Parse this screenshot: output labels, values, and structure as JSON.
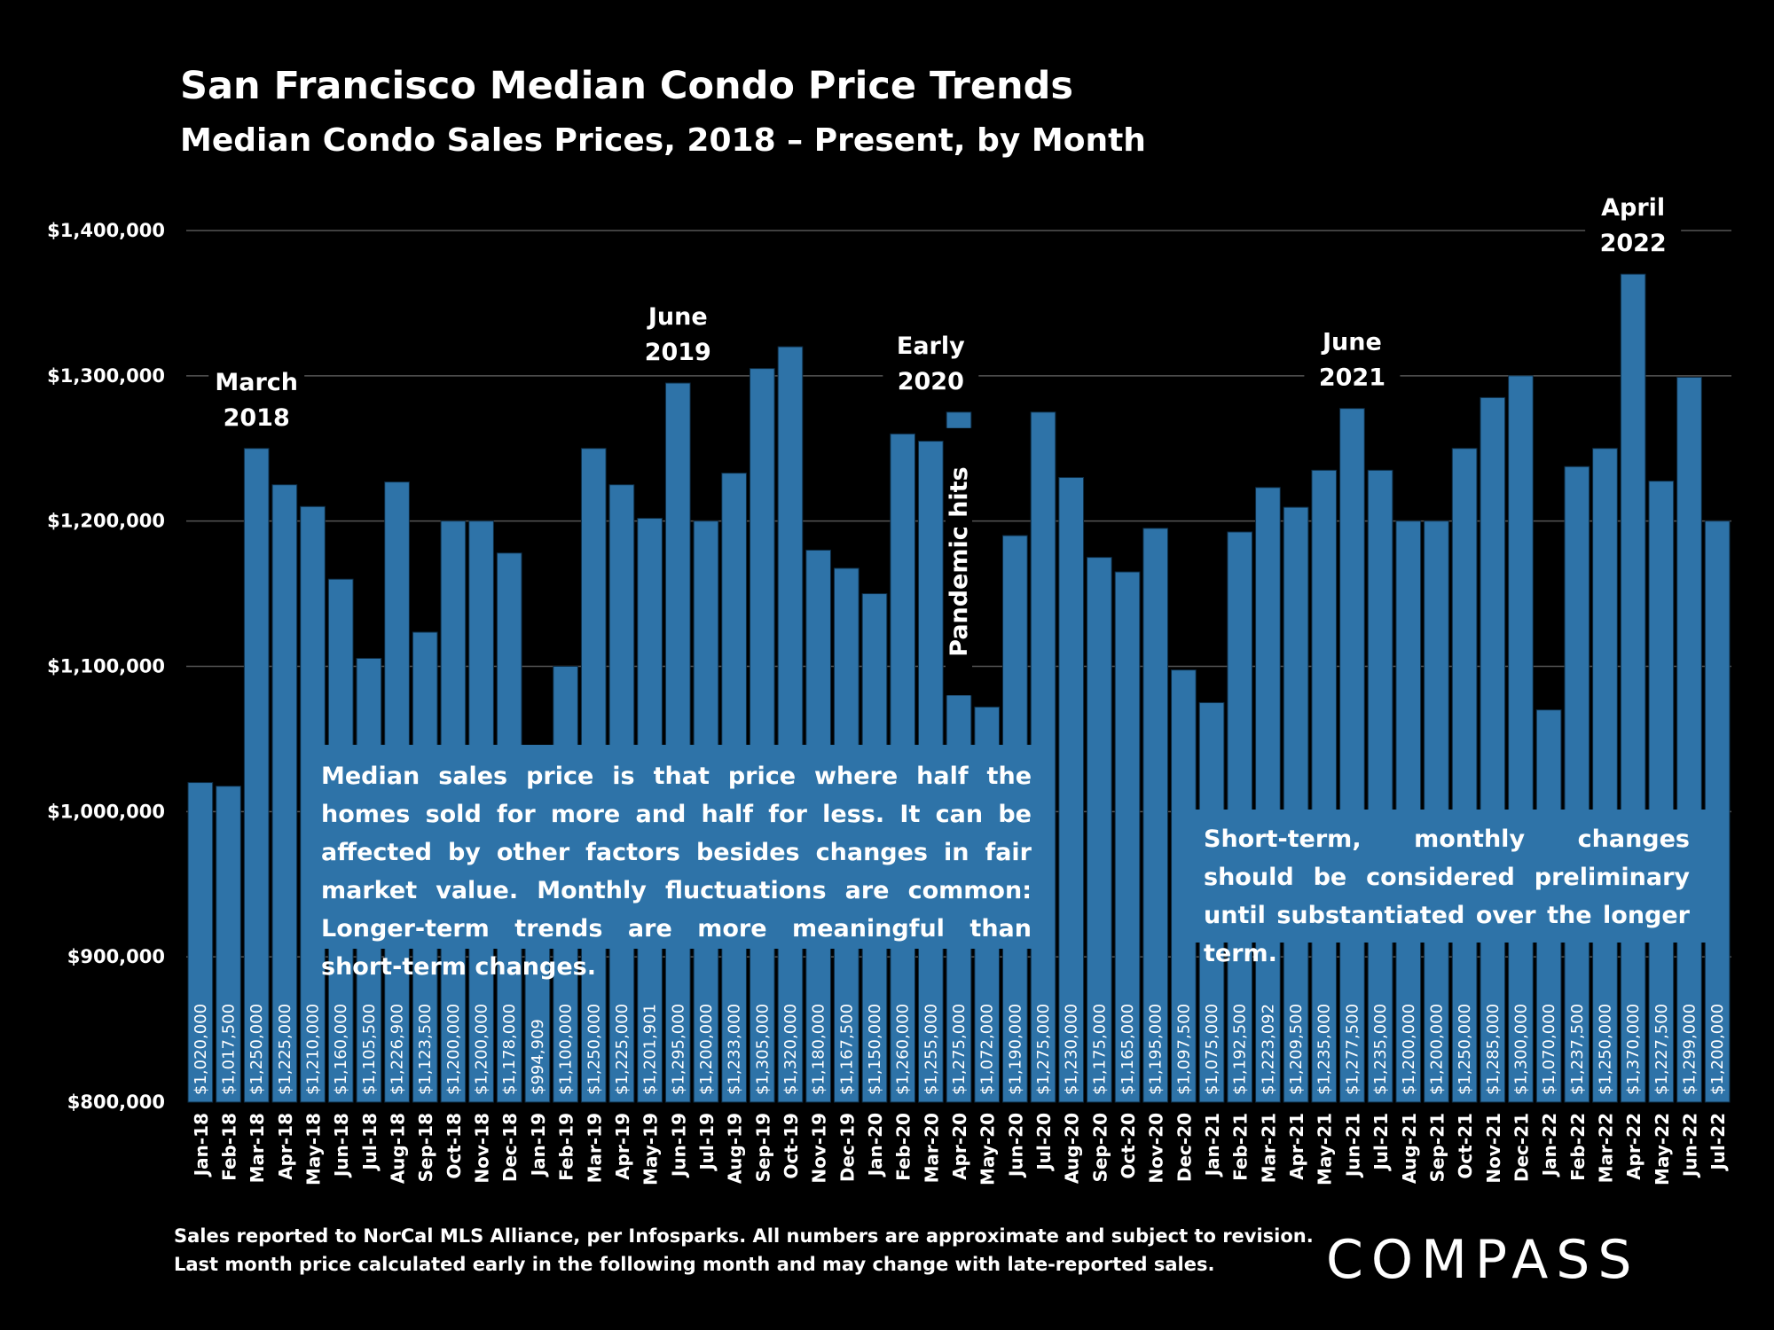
{
  "header": {
    "title": "San Francisco Median Condo Price Trends",
    "subtitle": "Median Condo Sales Prices, 2018 – Present, by Month"
  },
  "chart_data": {
    "type": "bar",
    "title": "San Francisco Median Condo Price Trends",
    "subtitle": "Median Condo Sales Prices, 2018 – Present, by Month",
    "xlabel": "",
    "ylabel": "",
    "ylim": [
      800000,
      1400000
    ],
    "yticks": [
      800000,
      900000,
      1000000,
      1100000,
      1200000,
      1300000,
      1400000
    ],
    "ytick_labels": [
      "$800,000",
      "$900,000",
      "$1,000,000",
      "$1,100,000",
      "$1,200,000",
      "$1,300,000",
      "$1,400,000"
    ],
    "grid": true,
    "bar_color": "#2e73a8",
    "categories": [
      "Jan-18",
      "Feb-18",
      "Mar-18",
      "Apr-18",
      "May-18",
      "Jun-18",
      "Jul-18",
      "Aug-18",
      "Sep-18",
      "Oct-18",
      "Nov-18",
      "Dec-18",
      "Jan-19",
      "Feb-19",
      "Mar-19",
      "Apr-19",
      "May-19",
      "Jun-19",
      "Jul-19",
      "Aug-19",
      "Sep-19",
      "Oct-19",
      "Nov-19",
      "Dec-19",
      "Jan-20",
      "Feb-20",
      "Mar-20",
      "Apr-20",
      "May-20",
      "Jun-20",
      "Jul-20",
      "Aug-20",
      "Sep-20",
      "Oct-20",
      "Nov-20",
      "Dec-20",
      "Jan-21",
      "Feb-21",
      "Mar-21",
      "Apr-21",
      "May-21",
      "Jun-21",
      "Jul-21",
      "Aug-21",
      "Sep-21",
      "Oct-21",
      "Nov-21",
      "Dec-21",
      "Jan-22",
      "Feb-22",
      "Mar-22",
      "Apr-22",
      "May-22",
      "Jun-22",
      "Jul-22"
    ],
    "values": [
      1020000,
      1017500,
      1250000,
      1225000,
      1210000,
      1160000,
      1105500,
      1226900,
      1123500,
      1200000,
      1200000,
      1178000,
      994909,
      1100000,
      1250000,
      1225000,
      1201901,
      1295000,
      1200000,
      1233000,
      1305000,
      1320000,
      1180000,
      1167500,
      1150000,
      1260000,
      1255000,
      1275000,
      1072000,
      1190000,
      1275000,
      1230000,
      1175000,
      1165000,
      1195000,
      1097500,
      1075000,
      1192500,
      1223092,
      1209500,
      1235000,
      1277500,
      1235000,
      1200000,
      1200000,
      1250000,
      1285000,
      1300000,
      1070000,
      1237500,
      1250000,
      1370000,
      1227500,
      1299000,
      1200000
    ],
    "data_labels": [
      "$1,020,000",
      "$1,017,500",
      "$1,250,000",
      "$1,225,000",
      "$1,210,000",
      "$1,160,000",
      "$1,105,500",
      "$1,226,900",
      "$1,123,500",
      "$1,200,000",
      "$1,200,000",
      "$1,178,000",
      "$994,909",
      "$1,100,000",
      "$1,250,000",
      "$1,225,000",
      "$1,201,901",
      "$1,295,000",
      "$1,200,000",
      "$1,233,000",
      "$1,305,000",
      "$1,320,000",
      "$1,180,000",
      "$1,167,500",
      "$1,150,000",
      "$1,260,000",
      "$1,255,000",
      "$1,275,000",
      "$1,072,000",
      "$1,190,000",
      "$1,275,000",
      "$1,230,000",
      "$1,175,000",
      "$1,165,000",
      "$1,195,000",
      "$1,097,500",
      "$1,075,000",
      "$1,192,500",
      "$1,223,092",
      "$1,209,500",
      "$1,235,000",
      "$1,277,500",
      "$1,235,000",
      "$1,200,000",
      "$1,200,000",
      "$1,250,000",
      "$1,285,000",
      "$1,300,000",
      "$1,070,000",
      "$1,237,500",
      "$1,250,000",
      "$1,370,000",
      "$1,227,500",
      "$1,299,000",
      "$1,200,000"
    ],
    "annotations": [
      {
        "category": "Mar-18",
        "lines": [
          "March",
          "2018"
        ]
      },
      {
        "category": "Jun-19",
        "lines": [
          "June",
          "2019"
        ]
      },
      {
        "category": "Mar-20",
        "lines": [
          "Early",
          "2020"
        ]
      },
      {
        "category": "Jun-21",
        "lines": [
          "June",
          "2021"
        ]
      },
      {
        "category": "Apr-22",
        "lines": [
          "April",
          "2022"
        ]
      },
      {
        "category": "Apr-20",
        "lines": [
          "Pandemic hits"
        ],
        "vertical": true
      }
    ]
  },
  "notes": {
    "median_note": "Median sales price is that price where half the homes sold for more and half for less. It can be affected by other factors besides changes in fair market value. Monthly fluctuations are common: Longer-term trends are more meaningful than short-term changes.",
    "shortterm_note": "Short-term, monthly changes should be considered preliminary until substantiated over the longer term."
  },
  "footer": {
    "line1": "Sales reported to NorCal MLS Alliance, per Infosparks. All numbers are approximate and subject to revision.",
    "line2": "Last month price calculated early in the following month and may change with late-reported sales."
  },
  "brand": {
    "logo_text": "COMPASS"
  }
}
